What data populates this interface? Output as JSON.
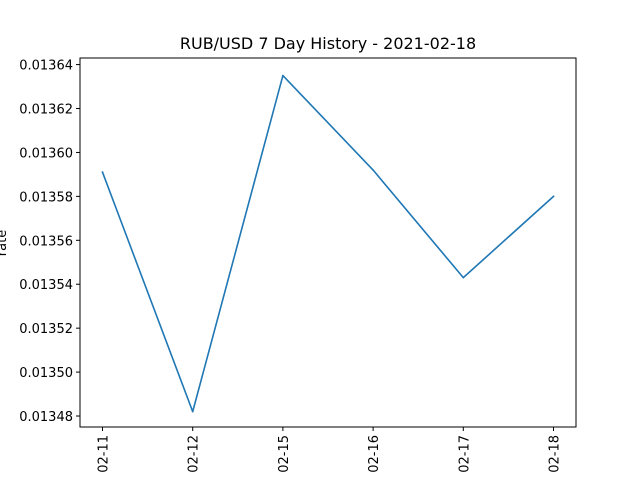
{
  "chart_data": {
    "type": "line",
    "title": "RUB/USD 7 Day History - 2021-02-18",
    "xlabel": "",
    "ylabel": "rate",
    "categories": [
      "02-11",
      "02-12",
      "02-15",
      "02-16",
      "02-17",
      "02-18"
    ],
    "series": [
      {
        "values": [
          0.013591,
          0.013482,
          0.013635,
          0.013592,
          0.013543,
          0.01358
        ]
      }
    ],
    "yticks": [
      0.01348,
      0.0135,
      0.01352,
      0.01354,
      0.01356,
      0.01358,
      0.0136,
      0.01362,
      0.01364
    ],
    "ytick_labels": [
      "0.01348",
      "0.01350",
      "0.01352",
      "0.01354",
      "0.01356",
      "0.01358",
      "0.01360",
      "0.01362",
      "0.01364"
    ],
    "ylim": [
      0.013475,
      0.013643
    ],
    "grid": false,
    "line_color": "#1f77b4"
  }
}
